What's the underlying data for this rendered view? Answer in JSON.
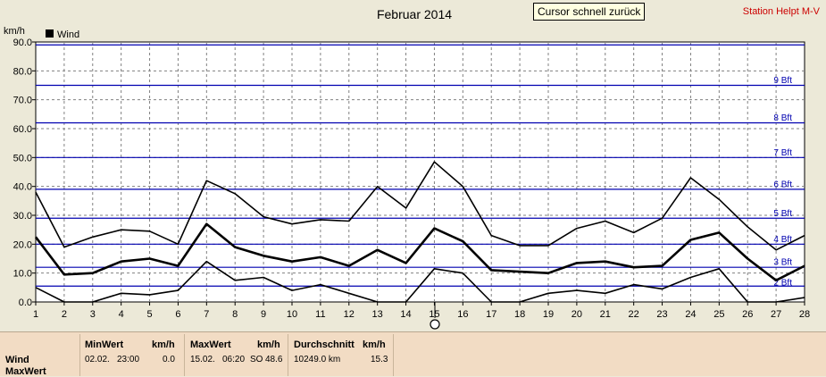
{
  "header": {
    "title": "Februar 2014",
    "station": "Station Helpt M-V",
    "tooltip": "Cursor schnell zurück"
  },
  "chart_data": {
    "type": "line",
    "yunit": "km/h",
    "ylim": [
      0,
      90
    ],
    "yticks": [
      "0.0",
      "10.0",
      "20.0",
      "30.0",
      "40.0",
      "50.0",
      "60.0",
      "70.0",
      "80.0",
      "90.0"
    ],
    "x": [
      1,
      2,
      3,
      4,
      5,
      6,
      7,
      8,
      9,
      10,
      11,
      12,
      13,
      14,
      15,
      16,
      17,
      18,
      19,
      20,
      21,
      22,
      23,
      24,
      25,
      26,
      27,
      28
    ],
    "legend": "Wind",
    "beaufort": [
      {
        "label": "3 Bft",
        "value": 5.5
      },
      {
        "label": "4 Bft",
        "value": 12
      },
      {
        "label": "5 Bft",
        "value": 20
      },
      {
        "label": "6 Bft",
        "value": 29
      },
      {
        "label": "7 Bft",
        "value": 39
      },
      {
        "label": "8 Bft",
        "value": 50
      },
      {
        "label": "9 Bft",
        "value": 62
      },
      {
        "label": "",
        "value": 75
      },
      {
        "label": "",
        "value": 89
      }
    ],
    "bft_labels_shown": [
      {
        "label": "9 Bft",
        "at": 77
      },
      {
        "label": "8 Bft",
        "at": 64
      },
      {
        "label": "7 Bft",
        "at": 52
      },
      {
        "label": "6 Bft",
        "at": 41
      },
      {
        "label": "5 Bft",
        "at": 31
      },
      {
        "label": "4 Bft",
        "at": 22
      },
      {
        "label": "3 Bft",
        "at": 14
      },
      {
        "label": "2 Bft",
        "at": 7
      }
    ],
    "series": [
      {
        "values": [
          38,
          19,
          22.5,
          25,
          24.5,
          20,
          42,
          37.5,
          29.5,
          27,
          28.5,
          28,
          40,
          32.5,
          48.5,
          40,
          23,
          19.5,
          19.5,
          25.5,
          28,
          24,
          29,
          43,
          35.5,
          26,
          18,
          23
        ]
      },
      {
        "values": [
          22.5,
          9.5,
          10,
          14,
          15,
          12.5,
          27,
          19,
          16,
          14,
          15.5,
          12.5,
          18,
          13.5,
          25.5,
          21,
          11,
          10.5,
          10,
          13.5,
          14,
          12,
          12.5,
          21.5,
          24,
          15,
          7.5,
          12.5
        ]
      },
      {
        "values": [
          5,
          0,
          0,
          3,
          2.5,
          4,
          14,
          7.5,
          8.5,
          4,
          6,
          3,
          0,
          0,
          11.5,
          10,
          0,
          0,
          3,
          4,
          3,
          6,
          4.5,
          8.5,
          11.5,
          0,
          0,
          1.5
        ]
      }
    ]
  },
  "panel": {
    "row_labels": [
      "Wind",
      "MaxWert"
    ],
    "min": {
      "header": "MinWert",
      "unit": "km/h",
      "date": "02.02.",
      "time": "23:00",
      "value": "0.0"
    },
    "max": {
      "header": "MaxWert",
      "unit": "km/h",
      "date": "15.02.",
      "time": "06:20",
      "dir": "SO",
      "value": "48.6"
    },
    "avg": {
      "header": "Durchschnitt",
      "unit": "km/h",
      "total": "10249.0 km",
      "value": "15.3"
    }
  }
}
